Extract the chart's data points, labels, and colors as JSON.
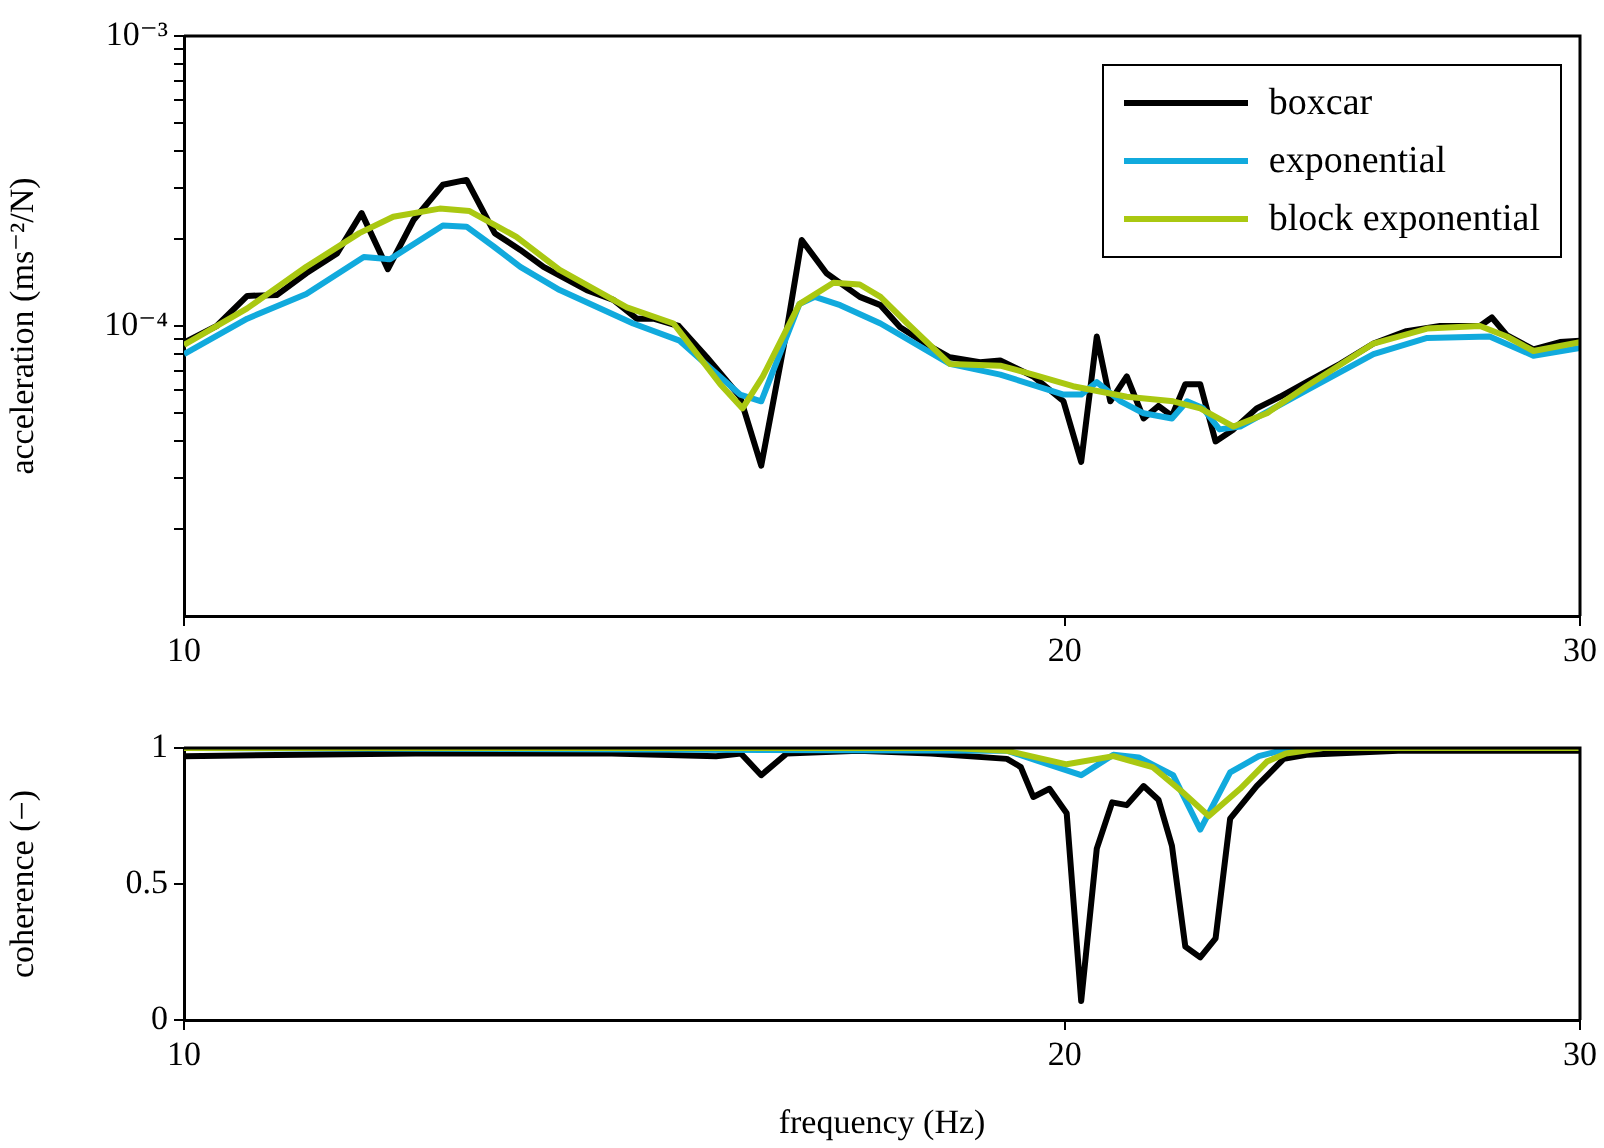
{
  "chart_data": [
    {
      "type": "line",
      "ylabel": "acceleration (ms⁻²/N)",
      "log": "xy",
      "grid": false,
      "legend": "top right",
      "marker": "none",
      "xlim": [
        10,
        30
      ],
      "xticks": [
        10,
        20,
        30
      ],
      "ylim": [
        1e-05,
        0.001
      ],
      "yticks": [
        {
          "value": 0.001,
          "label": "10⁻³"
        },
        {
          "value": 0.0001,
          "label": "10⁻⁴"
        },
        {
          "value": 2e-05,
          "label": null
        },
        {
          "value": 3e-05,
          "label": null
        },
        {
          "value": 4e-05,
          "label": null
        },
        {
          "value": 5e-05,
          "label": null
        },
        {
          "value": 6e-05,
          "label": null
        },
        {
          "value": 7e-05,
          "label": null
        },
        {
          "value": 8e-05,
          "label": null
        },
        {
          "value": 9e-05,
          "label": null
        },
        {
          "value": 0.0002,
          "label": null
        },
        {
          "value": 0.0003,
          "label": null
        },
        {
          "value": 0.0004,
          "label": null
        },
        {
          "value": 0.0005,
          "label": null
        },
        {
          "value": 0.0006,
          "label": null
        },
        {
          "value": 0.0007,
          "label": null
        },
        {
          "value": 0.0008,
          "label": null
        },
        {
          "value": 0.0009,
          "label": null
        }
      ],
      "series": [
        {
          "name": "boxcar",
          "color": "#000000",
          "x": [
            10.0,
            10.26,
            10.51,
            10.76,
            11.01,
            11.28,
            11.5,
            11.74,
            11.98,
            12.26,
            12.49,
            12.77,
            13.03,
            13.27,
            13.73,
            14.02,
            14.28,
            14.47,
            14.76,
            15.09,
            15.49,
            15.75,
            16.07,
            16.26,
            16.58,
            17.02,
            17.3,
            17.57,
            17.99,
            18.27,
            18.71,
            19.01,
            19.51,
            19.98,
            20.26,
            20.51,
            20.73,
            21.0,
            21.28,
            21.53,
            21.76,
            21.99,
            22.25,
            22.52,
            22.84,
            23.26,
            23.69,
            24.19,
            24.84,
            25.5,
            26.17,
            26.87,
            27.73,
            27.99,
            28.32,
            28.92,
            29.53,
            30.0
          ],
          "values": [
            8.77e-05,
            0.0001,
            0.000127,
            0.000128,
            0.000152,
            0.000178,
            0.000245,
            0.000157,
            0.000232,
            0.000307,
            0.000319,
            0.000209,
            0.000183,
            0.00016,
            0.000133,
            0.000123,
            0.000106,
            0.000106,
            0.0001,
            7.8e-05,
            5.7e-05,
            3.3e-05,
            9.7e-05,
            0.000198,
            0.000152,
            0.000126,
            0.000118,
            9.9e-05,
            8.5e-05,
            7.8e-05,
            7.5e-05,
            7.6e-05,
            6.7e-05,
            5.5e-05,
            3.4e-05,
            9.2e-05,
            5.5e-05,
            6.7e-05,
            4.8e-05,
            5.3e-05,
            4.9e-05,
            6.3e-05,
            6.3e-05,
            4e-05,
            4.4e-05,
            5.2e-05,
            5.7e-05,
            6.4e-05,
            7.4e-05,
            8.7e-05,
            9.6e-05,
            0.0001,
            0.0001,
            0.000107,
            9.3e-05,
            8.3e-05,
            8.8e-05,
            8.9e-05
          ]
        },
        {
          "name": "exponential",
          "color": "#11aadd",
          "x": [
            10.0,
            10.51,
            11.01,
            11.52,
            11.76,
            12.26,
            12.49,
            12.76,
            13.03,
            13.44,
            14.24,
            14.77,
            15.49,
            15.75,
            16.23,
            16.43,
            16.76,
            17.3,
            18.27,
            19.01,
            19.98,
            20.26,
            20.51,
            20.9,
            21.28,
            21.76,
            22.02,
            22.3,
            22.59,
            22.96,
            24.19,
            25.5,
            26.6,
            27.94,
            28.92,
            30.0
          ],
          "values": [
            8e-05,
            0.000106,
            0.000129,
            0.000173,
            0.00017,
            0.000222,
            0.00022,
            0.000188,
            0.00016,
            0.000133,
            0.000102,
            8.9e-05,
            5.8e-05,
            5.5e-05,
            0.000119,
            0.000126,
            0.000118,
            0.000102,
            7.4e-05,
            6.8e-05,
            5.8e-05,
            5.8e-05,
            6.4e-05,
            5.5e-05,
            5e-05,
            4.8e-05,
            5.5e-05,
            5.2e-05,
            4.4e-05,
            4.5e-05,
            6e-05,
            8e-05,
            9.1e-05,
            9.2e-05,
            7.9e-05,
            8.4e-05
          ]
        },
        {
          "name": "block exponential",
          "color": "#aac811",
          "x": [
            10.0,
            10.51,
            11.01,
            11.48,
            11.79,
            12.23,
            12.52,
            12.99,
            13.44,
            14.17,
            14.7,
            15.25,
            15.52,
            15.77,
            16.23,
            16.67,
            17.02,
            17.3,
            17.67,
            18.27,
            19.01,
            19.51,
            20.13,
            21.0,
            21.78,
            22.25,
            22.84,
            23.45,
            24.19,
            25.5,
            26.6,
            27.73,
            28.32,
            28.92,
            30.0
          ],
          "values": [
            8.6e-05,
            0.000115,
            0.00016,
            0.000209,
            0.000238,
            0.000254,
            0.000249,
            0.000203,
            0.000156,
            0.000116,
            0.000102,
            6.3e-05,
            5.2e-05,
            6.7e-05,
            0.000119,
            0.000141,
            0.000139,
            0.000126,
            0.000102,
            7.4e-05,
            7.3e-05,
            6.8e-05,
            6.2e-05,
            5.7e-05,
            5.5e-05,
            5.2e-05,
            4.5e-05,
            5e-05,
            6.2e-05,
            8.7e-05,
            9.8e-05,
            0.0001,
            9.2e-05,
            8.2e-05,
            8.8e-05
          ]
        }
      ]
    },
    {
      "type": "line",
      "xlabel": "frequency (Hz)",
      "ylabel": "coherence (−)",
      "log": "x",
      "grid": false,
      "legend": false,
      "marker": "none",
      "xlim": [
        10,
        30
      ],
      "xticks": [
        10,
        20,
        30
      ],
      "ylim": [
        0,
        1
      ],
      "yticks": [
        0,
        0.5,
        1
      ],
      "series": [
        {
          "color": "#000000",
          "x": [
            10,
            12,
            14,
            15.2,
            15.5,
            15.75,
            16.07,
            17,
            18,
            19.11,
            19.32,
            19.51,
            19.76,
            20.03,
            20.26,
            20.51,
            20.76,
            21.0,
            21.28,
            21.53,
            21.76,
            21.99,
            22.25,
            22.52,
            22.78,
            23.26,
            23.76,
            24.19,
            26,
            30
          ],
          "values": [
            0.97,
            0.98,
            0.98,
            0.97,
            0.98,
            0.9,
            0.98,
            0.99,
            0.98,
            0.96,
            0.93,
            0.82,
            0.85,
            0.76,
            0.07,
            0.63,
            0.8,
            0.79,
            0.86,
            0.81,
            0.64,
            0.27,
            0.23,
            0.3,
            0.74,
            0.86,
            0.96,
            0.975,
            0.99,
            0.99
          ]
        },
        {
          "color": "#11aadd",
          "x": [
            10,
            19.11,
            20.26,
            20.78,
            21.2,
            21.78,
            22.25,
            22.78,
            23.3,
            23.69,
            24.5,
            30
          ],
          "values": [
            1.0,
            0.99,
            0.9,
            0.975,
            0.965,
            0.9,
            0.7,
            0.91,
            0.97,
            0.99,
            1.0,
            1.0
          ]
        },
        {
          "color": "#aac811",
          "x": [
            10,
            18.3,
            19.11,
            20.03,
            20.78,
            21.43,
            21.93,
            22.4,
            22.96,
            23.45,
            23.8,
            24.5,
            30
          ],
          "values": [
            1.0,
            1.0,
            0.99,
            0.94,
            0.97,
            0.93,
            0.84,
            0.75,
            0.85,
            0.95,
            0.98,
            1.0,
            1.0
          ]
        }
      ]
    }
  ]
}
